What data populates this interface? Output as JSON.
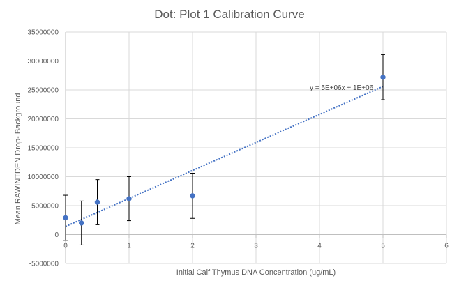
{
  "chart_data": {
    "type": "scatter",
    "title": "Dot: Plot 1 Calibration Curve",
    "xlabel": "Initial Calf Thymus DNA Concentration (ug/mL)",
    "ylabel": "Mean RAWINTDEN Drop- Background",
    "xlim": [
      0,
      6
    ],
    "ylim": [
      -5000000,
      35000000
    ],
    "x_ticks": [
      0,
      1,
      2,
      3,
      4,
      5,
      6
    ],
    "x_tick_labels": [
      "0",
      "1",
      "2",
      "3",
      "4",
      "5",
      "6"
    ],
    "y_ticks": [
      -5000000,
      0,
      5000000,
      10000000,
      15000000,
      20000000,
      25000000,
      30000000,
      35000000
    ],
    "y_tick_labels": [
      "-5000000",
      "0",
      "5000000",
      "10000000",
      "15000000",
      "20000000",
      "25000000",
      "30000000",
      "35000000"
    ],
    "grid": "vertical and horizontal major gridlines",
    "series": [
      {
        "name": "Mean RAWINTDEN Drop- Background",
        "color": "#4472c4",
        "x": [
          0,
          0.25,
          0.5,
          1,
          2,
          5
        ],
        "y": [
          2900000,
          2000000,
          5600000,
          6200000,
          6700000,
          27200000
        ],
        "error": [
          3900000,
          3800000,
          3900000,
          3800000,
          3900000,
          3900000
        ]
      }
    ],
    "trendline": {
      "type": "linear",
      "style": "dotted",
      "color": "#4472c4",
      "x_range": [
        0,
        5
      ],
      "y_range": [
        1400000,
        25600000
      ],
      "equation_label": "y = 5E+06x + 1E+06"
    }
  }
}
